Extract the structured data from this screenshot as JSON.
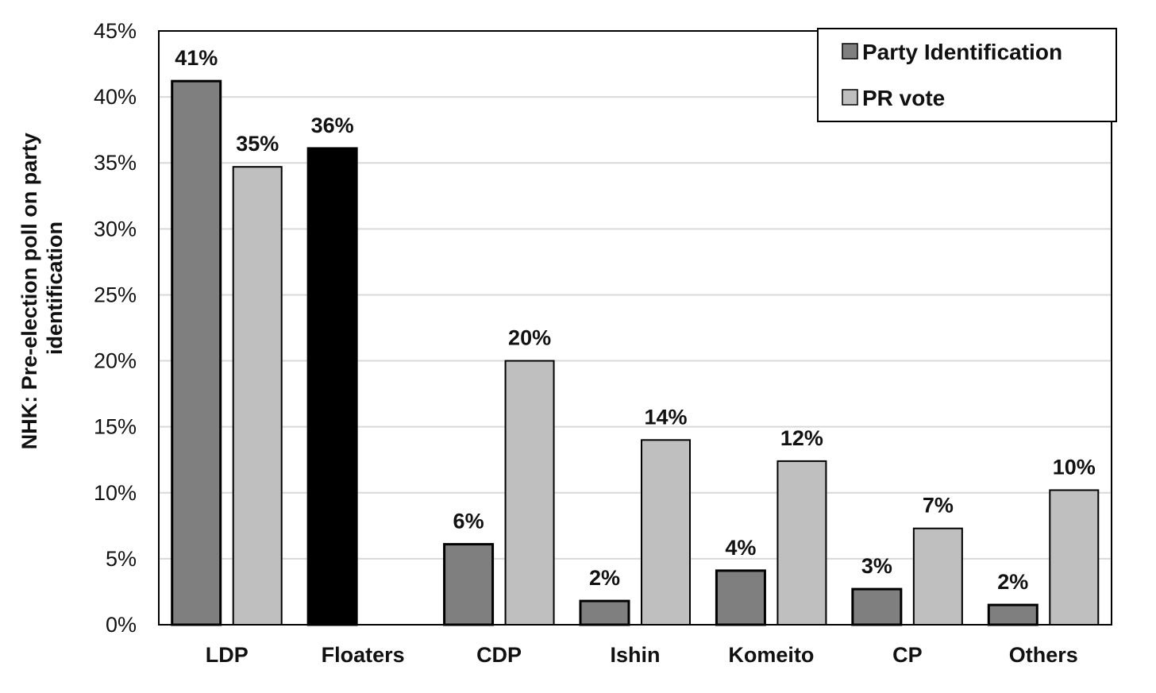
{
  "chart_data": {
    "type": "bar",
    "title": "",
    "xlabel": "",
    "ylabel_lines": [
      "NHK: Pre-election poll on party",
      "identification"
    ],
    "ylim": [
      0,
      45
    ],
    "yticks": [
      0,
      5,
      10,
      15,
      20,
      25,
      30,
      35,
      40,
      45
    ],
    "ytick_labels": [
      "0%",
      "5%",
      "10%",
      "15%",
      "20%",
      "25%",
      "30%",
      "35%",
      "40%",
      "45%"
    ],
    "grid": true,
    "legend_position": "top-right",
    "categories": [
      "LDP",
      "Floaters",
      "CDP",
      "Ishin",
      "Komeito",
      "CP",
      "Others"
    ],
    "series": [
      {
        "name": "Party Identification",
        "color": "#7f7f7f",
        "values": [
          41.2,
          36.1,
          6.1,
          1.8,
          4.1,
          2.7,
          1.5
        ],
        "labels": [
          "41%",
          "36%",
          "6%",
          "2%",
          "4%",
          "3%",
          "2%"
        ],
        "point_colors": [
          null,
          "#000000",
          null,
          null,
          null,
          null,
          null
        ]
      },
      {
        "name": "PR vote",
        "color": "#bfbfbf",
        "values": [
          34.7,
          null,
          20.0,
          14.0,
          12.4,
          7.3,
          10.2
        ],
        "labels": [
          "35%",
          null,
          "20%",
          "14%",
          "12%",
          "7%",
          "10%"
        ]
      }
    ]
  }
}
